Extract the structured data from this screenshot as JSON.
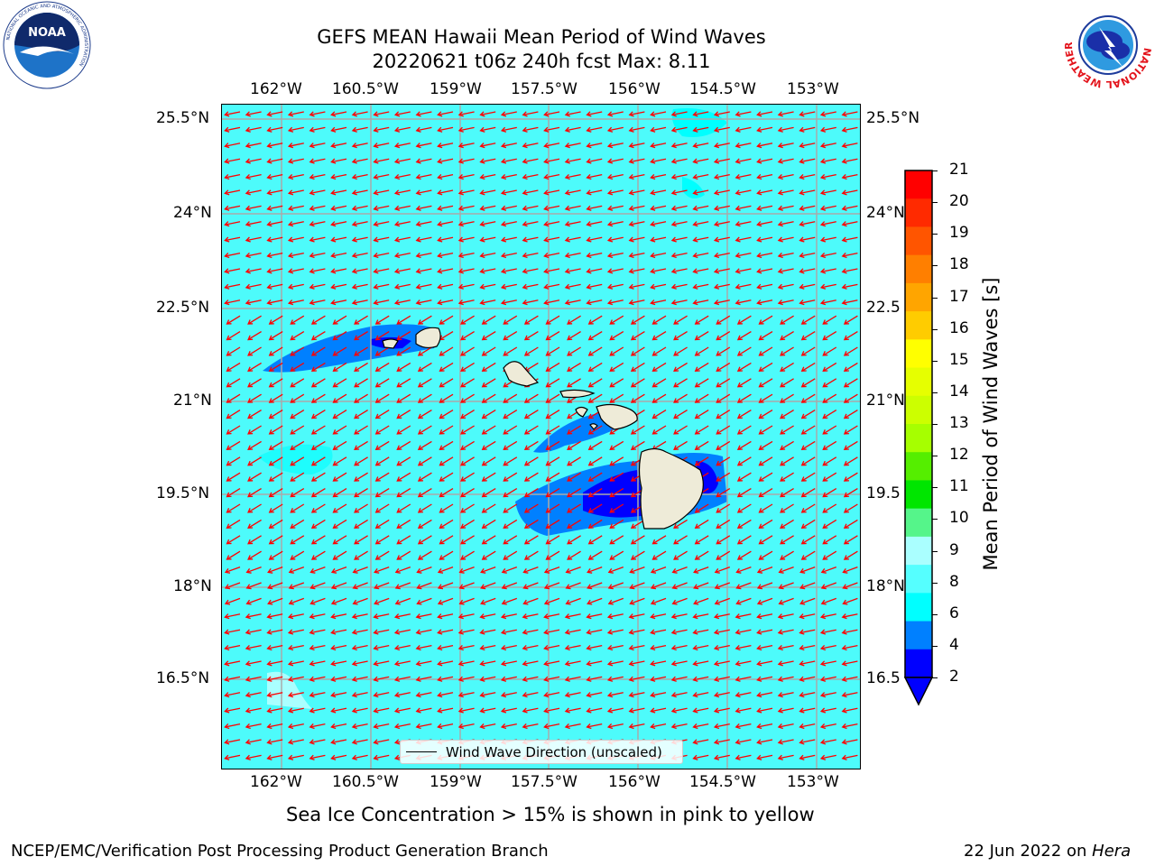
{
  "title": {
    "line1": "GEFS MEAN Hawaii Mean Period of Wind Waves",
    "line2": "20220621 t06z 240h fcst   Max: 8.11"
  },
  "map": {
    "lon_labels": [
      "162°W",
      "160.5°W",
      "159°W",
      "157.5°W",
      "156°W",
      "154.5°W",
      "153°W"
    ],
    "lat_labels_left": [
      "25.5°N",
      "24°N",
      "22.5°N",
      "21°N",
      "19.5°N",
      "18°N",
      "16.5°N"
    ],
    "lat_labels_right": [
      "25.5°N",
      "24°N",
      "22.5",
      "21°N",
      "19.5",
      "18°N",
      "16.5"
    ],
    "ocean_color": "#4dfbfb",
    "arrow_color": "#ff0000",
    "legend_label": "Wind Wave Direction (unscaled)"
  },
  "colorbar": {
    "label": "Mean Period of Wind Waves [s]",
    "ticks": [
      "21",
      "20",
      "19",
      "18",
      "17",
      "16",
      "15",
      "14",
      "13",
      "12",
      "11",
      "10",
      "9",
      "8",
      "6",
      "4",
      "2"
    ],
    "colors": [
      "#ff0000",
      "#ff2a00",
      "#ff5500",
      "#ff7f00",
      "#ffa500",
      "#ffcc00",
      "#ffff00",
      "#e6ff00",
      "#ccff00",
      "#a6ff00",
      "#55ee00",
      "#00e600",
      "#55f58a",
      "#aaffff",
      "#55ffff",
      "#00ffff",
      "#0080ff",
      "#0000ff"
    ]
  },
  "note": "Sea Ice Concentration > 15% is shown in pink to yellow",
  "footer": {
    "left": "NCEP/EMC/Verification Post Processing Product Generation Branch",
    "date": "22 Jun 2022 on ",
    "machine": "Hera"
  },
  "logos": {
    "noaa_text": "NOAA",
    "noaa_ring": "NATIONAL OCEANIC AND ATMOSPHERIC ADMINISTRATION",
    "noaa_ring_bottom": "U.S. DEPARTMENT OF COMMERCE",
    "nws_ring": "NATIONAL WEATHER SERVICE"
  }
}
